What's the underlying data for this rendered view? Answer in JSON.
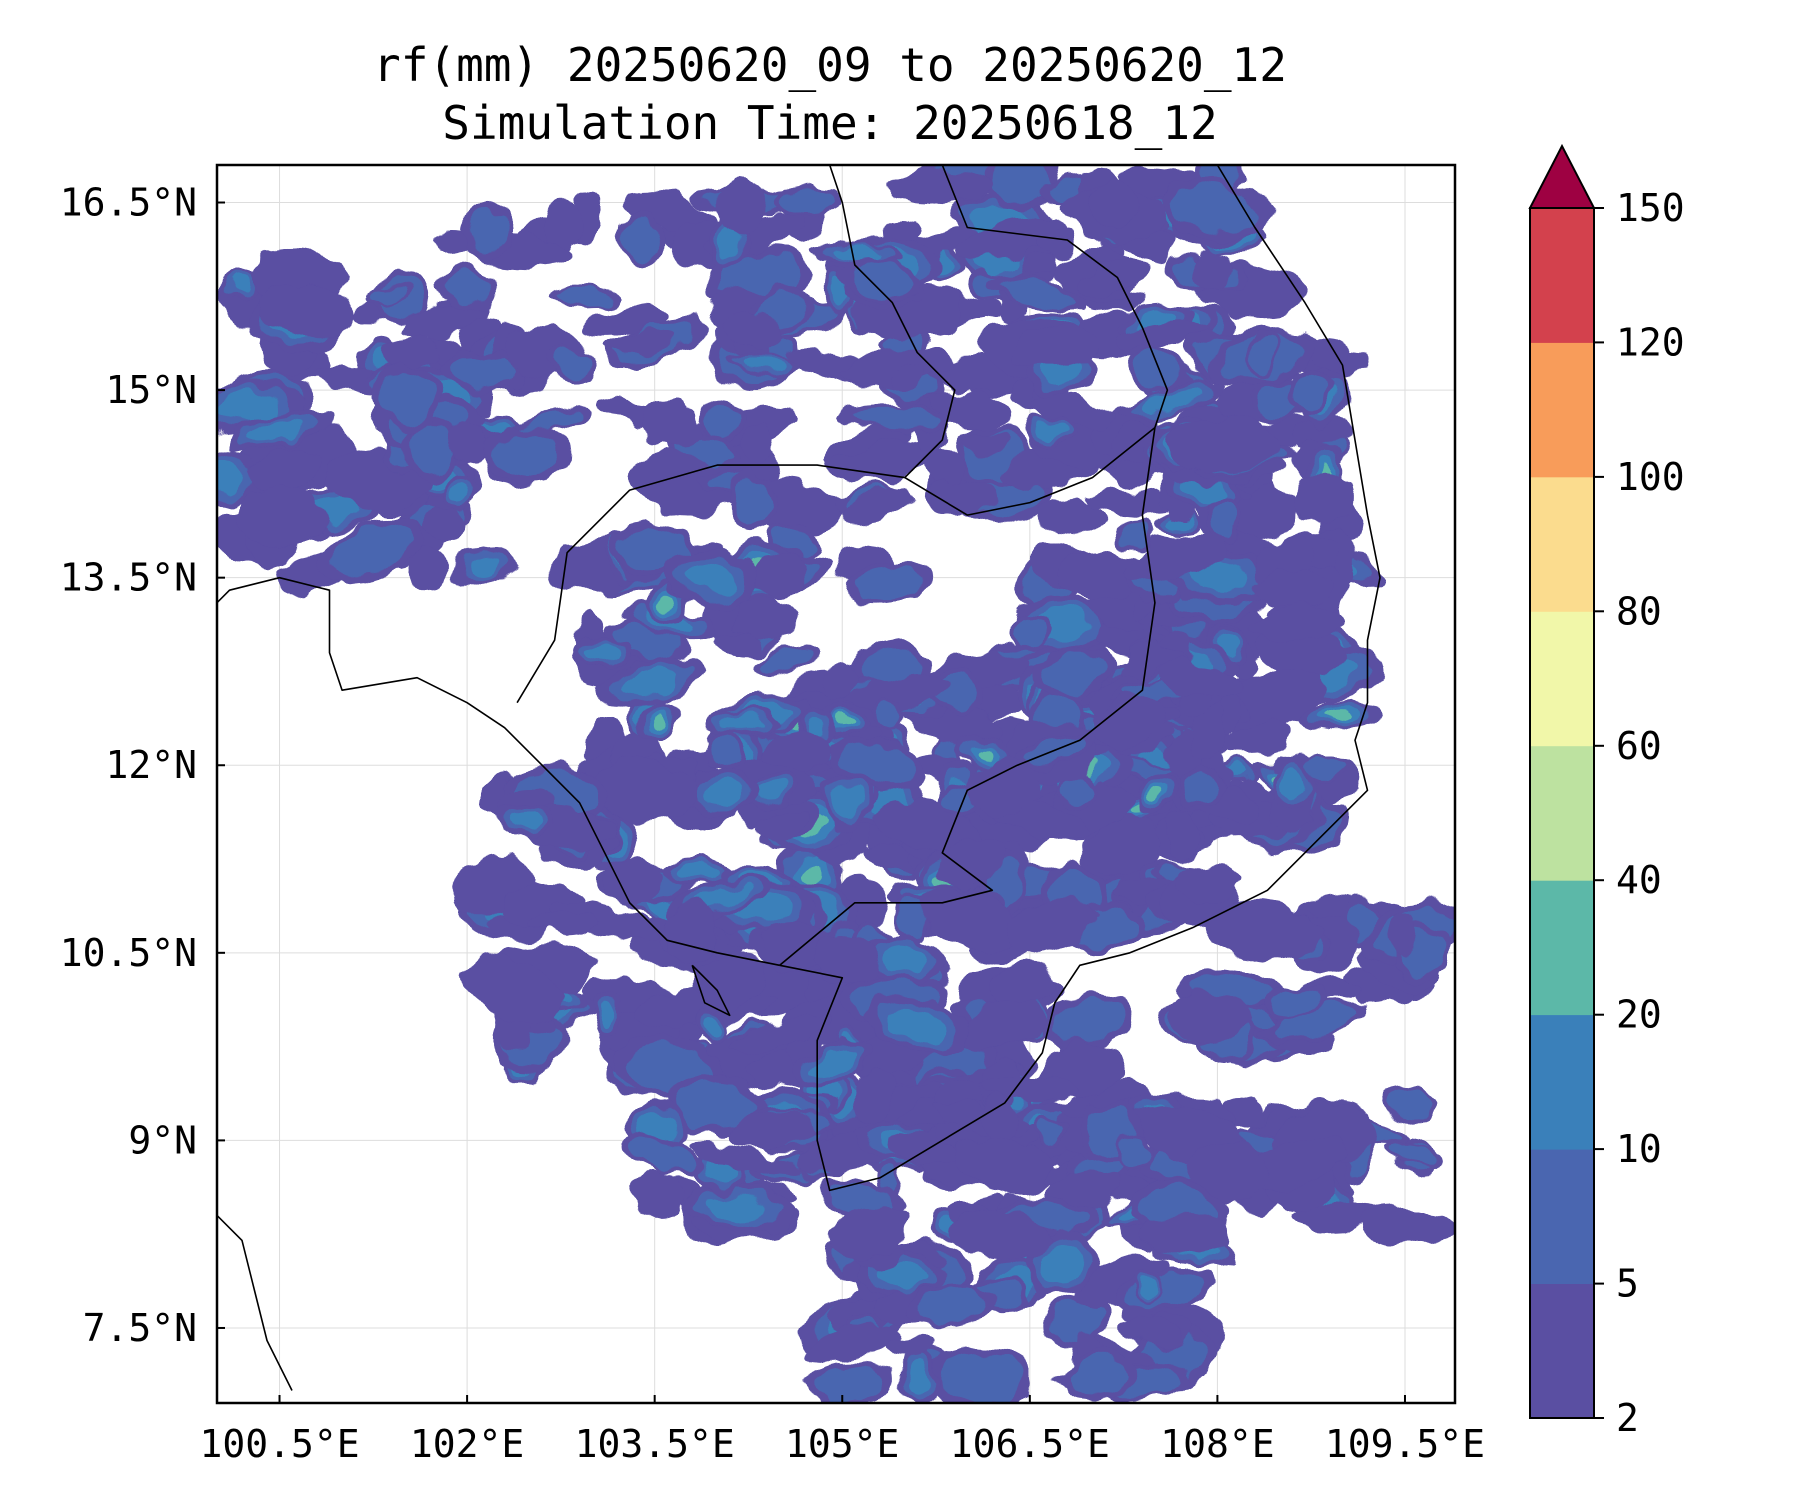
{
  "title": "rf(mm) 20250620_09 to 20250620_12",
  "subtitle": "Simulation Time: 20250618_12",
  "map": {
    "lon_range": [
      100.0,
      109.9
    ],
    "lat_range": [
      6.9,
      16.8
    ],
    "lon_ticks": [
      "100.5°E",
      "102°E",
      "103.5°E",
      "105°E",
      "106.5°E",
      "108°E",
      "109.5°E"
    ],
    "lon_tick_values": [
      100.5,
      102.0,
      103.5,
      105.0,
      106.5,
      108.0,
      109.5
    ],
    "lat_ticks": [
      "7.5°N",
      "9°N",
      "10.5°N",
      "12°N",
      "13.5°N",
      "15°N",
      "16.5°N"
    ],
    "lat_tick_values": [
      7.5,
      9.0,
      10.5,
      12.0,
      13.5,
      15.0,
      16.5
    ],
    "grid": true,
    "field": "rainfall",
    "background": "#ffffff",
    "border_color": "#000000"
  },
  "colorbar": {
    "levels": [
      "2",
      "5",
      "10",
      "20",
      "40",
      "60",
      "80",
      "100",
      "120",
      "150"
    ],
    "colors": [
      "#5a4fa2",
      "#4a66b0",
      "#3a80ba",
      "#5cb8a8",
      "#bde2a0",
      "#f1f7a9",
      "#fbdc8e",
      "#f89c5a",
      "#d3414d"
    ],
    "extend_color": "#9e0142",
    "extend": "max"
  }
}
